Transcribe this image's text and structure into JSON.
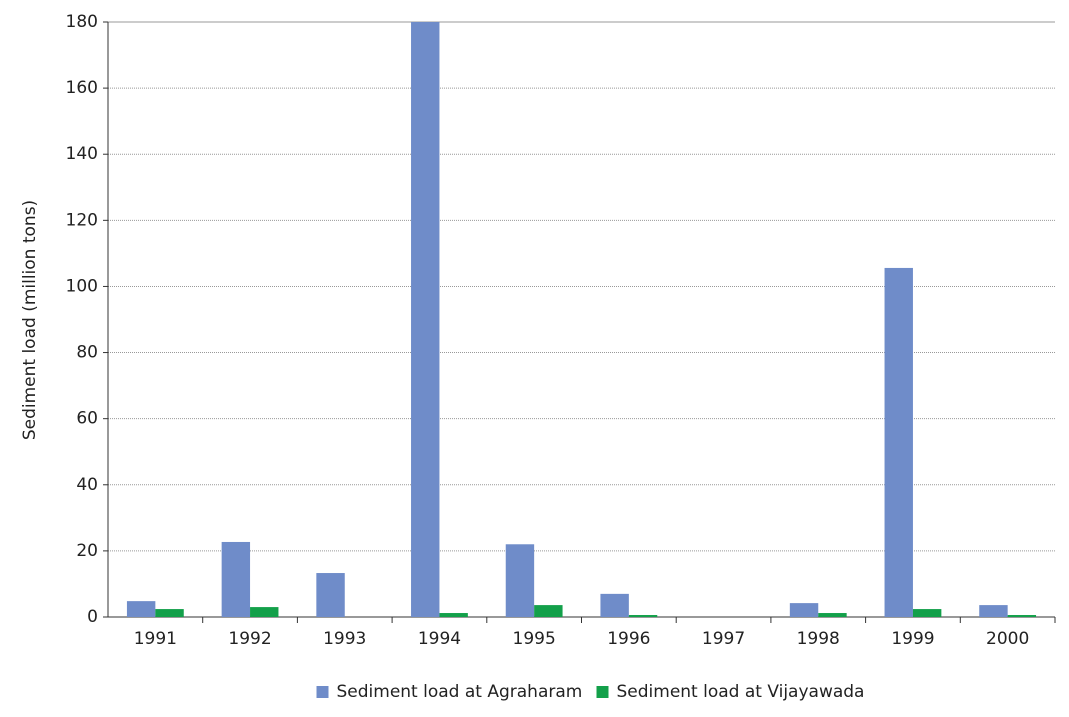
{
  "chart_data": {
    "type": "bar",
    "y_label": "Sediment load (million tons)",
    "categories": [
      "1991",
      "1992",
      "1993",
      "1994",
      "1995",
      "1996",
      "1997",
      "1998",
      "1999",
      "2000"
    ],
    "series": [
      {
        "name": "Sediment load at Agraharam",
        "color": "#6f8cc9",
        "values": [
          4.8,
          22.7,
          13.3,
          180,
          22,
          7,
          0,
          4.2,
          105.6,
          3.6
        ]
      },
      {
        "name": "Sediment load at Vijayawada",
        "color": "#13a04a",
        "values": [
          2.4,
          3,
          0,
          1.2,
          3.6,
          0.6,
          0,
          1.2,
          2.4,
          0.6
        ]
      }
    ],
    "ylim": [
      0,
      180
    ],
    "yticks": [
      0,
      20,
      40,
      60,
      80,
      100,
      120,
      140,
      160,
      180
    ],
    "grid": true,
    "legend": "bottom"
  }
}
